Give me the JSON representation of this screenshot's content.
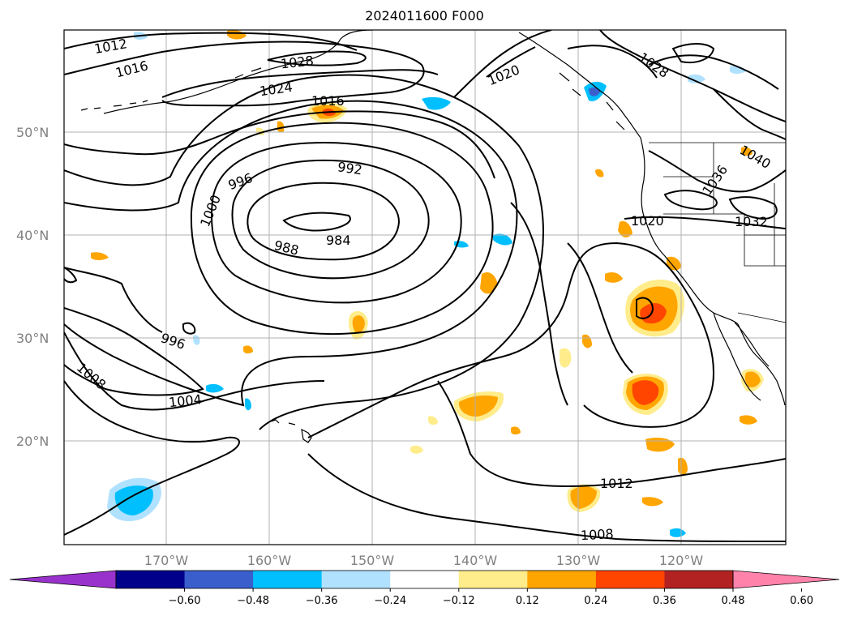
{
  "title": "2024011600 F000",
  "lat_labels": [
    "50°N",
    "40°N",
    "30°N",
    "20°N"
  ],
  "lon_labels": [
    "170°W",
    "160°W",
    "150°W",
    "140°W",
    "130°W",
    "120°W"
  ],
  "contour_labels": [
    "1012",
    "1016",
    "1028",
    "1024",
    "1016",
    "1020",
    "1028",
    "996",
    "992",
    "1000",
    "988",
    "984",
    "996",
    "1008",
    "1004",
    "1020",
    "1032",
    "1036",
    "1040",
    "1012",
    "1008"
  ],
  "colorbar": {
    "ticks": [
      "−0.60",
      "−0.48",
      "−0.36",
      "−0.24",
      "−0.12",
      "0.12",
      "0.24",
      "0.36",
      "0.48",
      "0.60"
    ],
    "colors": {
      "under": "#9932cc",
      "bins": [
        "#00008b",
        "#3a5fcd",
        "#00bfff",
        "#b0e2ff",
        "#ffffff",
        "#ffec8b",
        "#ffa500",
        "#ff4500",
        "#b22222"
      ],
      "over": "#ff82ab"
    }
  },
  "fill_colors": {
    "neg_light": "#b0e2ff",
    "neg_mid": "#00bfff",
    "neg_dark": "#3a5fcd",
    "pos_light": "#ffec8b",
    "pos_mid": "#ffa500",
    "pos_dark": "#ff4500"
  }
}
